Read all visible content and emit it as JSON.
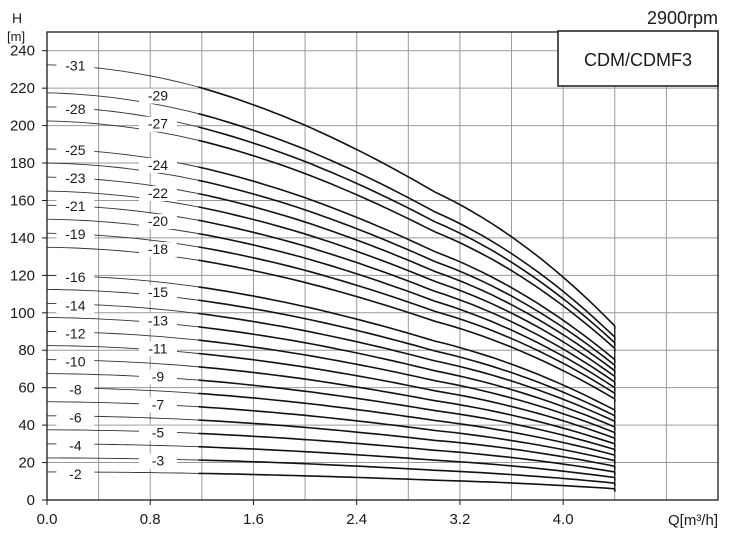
{
  "chart_data": {
    "type": "line",
    "speed_label": "2900rpm",
    "model_label": "CDM/CDMF3",
    "ylabel": "H",
    "yunit": "[m]",
    "xlabel": "Q[m³/h]",
    "xlim": [
      0,
      5.2
    ],
    "ylim": [
      0,
      250
    ],
    "x_ticks": [
      0.0,
      0.8,
      1.6,
      2.4,
      3.2,
      4.0
    ],
    "x_tick_labels": [
      "0.0",
      "0.8",
      "1.6",
      "2.4",
      "3.2",
      "4.0"
    ],
    "y_ticks": [
      0,
      20,
      40,
      60,
      80,
      100,
      120,
      140,
      160,
      180,
      200,
      220,
      240
    ],
    "y_tick_labels": [
      "0",
      "20",
      "40",
      "60",
      "80",
      "100",
      "120",
      "140",
      "160",
      "180",
      "200",
      "220",
      "240"
    ],
    "grid": true,
    "q_max": 4.4,
    "series": [
      {
        "name": "-2",
        "x": [
          0.0,
          1.2,
          2.0,
          3.0,
          4.0,
          4.4
        ],
        "y": [
          15.0,
          14.2,
          12.9,
          10.6,
          7.7,
          6.0
        ]
      },
      {
        "name": "-3",
        "x": [
          0.0,
          1.2,
          2.0,
          3.0,
          4.0,
          4.4
        ],
        "y": [
          22.5,
          21.3,
          19.4,
          15.9,
          11.5,
          9.0
        ]
      },
      {
        "name": "-4",
        "x": [
          0.0,
          1.2,
          2.0,
          3.0,
          4.0,
          4.4
        ],
        "y": [
          30.0,
          28.4,
          25.8,
          21.3,
          15.4,
          12.0
        ]
      },
      {
        "name": "-5",
        "x": [
          0.0,
          1.2,
          2.0,
          3.0,
          4.0,
          4.4
        ],
        "y": [
          37.5,
          35.5,
          32.3,
          26.6,
          19.2,
          15.0
        ]
      },
      {
        "name": "-6",
        "x": [
          0.0,
          1.2,
          2.0,
          3.0,
          4.0,
          4.4
        ],
        "y": [
          45.0,
          42.6,
          38.8,
          31.9,
          23.1,
          18.0
        ]
      },
      {
        "name": "-7",
        "x": [
          0.0,
          1.2,
          2.0,
          3.0,
          4.0,
          4.4
        ],
        "y": [
          52.5,
          49.7,
          45.2,
          37.2,
          26.9,
          21.0
        ]
      },
      {
        "name": "-8",
        "x": [
          0.0,
          1.2,
          2.0,
          3.0,
          4.0,
          4.4
        ],
        "y": [
          60.0,
          56.8,
          51.7,
          42.5,
          30.7,
          24.0
        ]
      },
      {
        "name": "-9",
        "x": [
          0.0,
          1.2,
          2.0,
          3.0,
          4.0,
          4.4
        ],
        "y": [
          67.5,
          63.9,
          58.1,
          47.8,
          34.6,
          27.0
        ]
      },
      {
        "name": "-10",
        "x": [
          0.0,
          1.2,
          2.0,
          3.0,
          4.0,
          4.4
        ],
        "y": [
          75.0,
          71.0,
          64.6,
          53.1,
          38.4,
          30.0
        ]
      },
      {
        "name": "-11",
        "x": [
          0.0,
          1.2,
          2.0,
          3.0,
          4.0,
          4.4
        ],
        "y": [
          82.5,
          78.1,
          71.0,
          58.4,
          42.3,
          33.0
        ]
      },
      {
        "name": "-12",
        "x": [
          0.0,
          1.2,
          2.0,
          3.0,
          4.0,
          4.4
        ],
        "y": [
          90.0,
          85.2,
          77.5,
          63.8,
          46.1,
          36.0
        ]
      },
      {
        "name": "-13",
        "x": [
          0.0,
          1.2,
          2.0,
          3.0,
          4.0,
          4.4
        ],
        "y": [
          97.5,
          92.3,
          84.0,
          69.1,
          49.9,
          39.0
        ]
      },
      {
        "name": "-14",
        "x": [
          0.0,
          1.2,
          2.0,
          3.0,
          4.0,
          4.4
        ],
        "y": [
          105.0,
          99.4,
          90.4,
          74.4,
          53.8,
          42.0
        ]
      },
      {
        "name": "-15",
        "x": [
          0.0,
          1.2,
          2.0,
          3.0,
          4.0,
          4.4
        ],
        "y": [
          112.5,
          106.5,
          96.9,
          79.7,
          57.6,
          45.0
        ]
      },
      {
        "name": "-16",
        "x": [
          0.0,
          1.2,
          2.0,
          3.0,
          4.0,
          4.4
        ],
        "y": [
          120.0,
          113.6,
          103.3,
          85.0,
          61.4,
          48.0
        ]
      },
      {
        "name": "-18",
        "x": [
          0.0,
          1.2,
          2.0,
          3.0,
          4.0,
          4.4
        ],
        "y": [
          135.0,
          127.8,
          116.2,
          95.6,
          69.1,
          54.0
        ]
      },
      {
        "name": "-19",
        "x": [
          0.0,
          1.2,
          2.0,
          3.0,
          4.0,
          4.4
        ],
        "y": [
          142.5,
          134.9,
          122.7,
          100.9,
          73.0,
          57.0
        ]
      },
      {
        "name": "-20",
        "x": [
          0.0,
          1.2,
          2.0,
          3.0,
          4.0,
          4.4
        ],
        "y": [
          150.0,
          142.0,
          129.2,
          106.3,
          76.8,
          60.0
        ]
      },
      {
        "name": "-21",
        "x": [
          0.0,
          1.2,
          2.0,
          3.0,
          4.0,
          4.4
        ],
        "y": [
          157.5,
          149.1,
          135.6,
          111.6,
          80.6,
          63.0
        ]
      },
      {
        "name": "-22",
        "x": [
          0.0,
          1.2,
          2.0,
          3.0,
          4.0,
          4.4
        ],
        "y": [
          165.0,
          156.2,
          142.1,
          116.9,
          84.5,
          66.0
        ]
      },
      {
        "name": "-23",
        "x": [
          0.0,
          1.2,
          2.0,
          3.0,
          4.0,
          4.4
        ],
        "y": [
          172.5,
          163.3,
          148.5,
          122.2,
          88.3,
          69.0
        ]
      },
      {
        "name": "-24",
        "x": [
          0.0,
          1.2,
          2.0,
          3.0,
          4.0,
          4.4
        ],
        "y": [
          180.0,
          170.4,
          155.0,
          127.5,
          92.2,
          72.0
        ]
      },
      {
        "name": "-25",
        "x": [
          0.0,
          1.2,
          2.0,
          3.0,
          4.0,
          4.4
        ],
        "y": [
          187.5,
          177.5,
          161.5,
          132.8,
          96.0,
          75.0
        ]
      },
      {
        "name": "-27",
        "x": [
          0.0,
          1.2,
          2.0,
          3.0,
          4.0,
          4.4
        ],
        "y": [
          202.5,
          191.7,
          174.4,
          143.4,
          103.7,
          81.0
        ]
      },
      {
        "name": "-28",
        "x": [
          0.0,
          1.2,
          2.0,
          3.0,
          4.0,
          4.4
        ],
        "y": [
          210.0,
          198.8,
          180.8,
          148.8,
          107.5,
          84.0
        ]
      },
      {
        "name": "-29",
        "x": [
          0.0,
          1.2,
          2.0,
          3.0,
          4.0,
          4.4
        ],
        "y": [
          217.5,
          205.9,
          187.3,
          154.1,
          111.4,
          87.0
        ]
      },
      {
        "name": "-31",
        "x": [
          0.0,
          1.2,
          2.0,
          3.0,
          4.0,
          4.4
        ],
        "y": [
          232.5,
          220.1,
          200.2,
          164.7,
          119.0,
          93.0
        ]
      }
    ],
    "curve_labels": [
      {
        "text": "-2",
        "x": 0.22,
        "y": 14.0
      },
      {
        "text": "-3",
        "x": 0.86,
        "y": 21.0
      },
      {
        "text": "-4",
        "x": 0.22,
        "y": 29.0
      },
      {
        "text": "-5",
        "x": 0.86,
        "y": 36.0
      },
      {
        "text": "-6",
        "x": 0.22,
        "y": 44.0
      },
      {
        "text": "-7",
        "x": 0.86,
        "y": 51.0
      },
      {
        "text": "-8",
        "x": 0.22,
        "y": 59.0
      },
      {
        "text": "-9",
        "x": 0.86,
        "y": 66.0
      },
      {
        "text": "-10",
        "x": 0.22,
        "y": 74.0
      },
      {
        "text": "-11",
        "x": 0.86,
        "y": 81.0
      },
      {
        "text": "-12",
        "x": 0.22,
        "y": 89.0
      },
      {
        "text": "-13",
        "x": 0.86,
        "y": 96.0
      },
      {
        "text": "-14",
        "x": 0.22,
        "y": 104.0
      },
      {
        "text": "-15",
        "x": 0.86,
        "y": 111.0
      },
      {
        "text": "-16",
        "x": 0.22,
        "y": 119.0
      },
      {
        "text": "-18",
        "x": 0.86,
        "y": 134.0
      },
      {
        "text": "-19",
        "x": 0.22,
        "y": 142.0
      },
      {
        "text": "-20",
        "x": 0.86,
        "y": 149.0
      },
      {
        "text": "-21",
        "x": 0.22,
        "y": 157.0
      },
      {
        "text": "-22",
        "x": 0.86,
        "y": 164.0
      },
      {
        "text": "-23",
        "x": 0.22,
        "y": 172.0
      },
      {
        "text": "-24",
        "x": 0.86,
        "y": 179.0
      },
      {
        "text": "-25",
        "x": 0.22,
        "y": 187.0
      },
      {
        "text": "-27",
        "x": 0.86,
        "y": 201.0
      },
      {
        "text": "-28",
        "x": 0.22,
        "y": 209.0
      },
      {
        "text": "-29",
        "x": 0.86,
        "y": 216.0
      },
      {
        "text": "-31",
        "x": 0.22,
        "y": 232.0
      }
    ]
  }
}
